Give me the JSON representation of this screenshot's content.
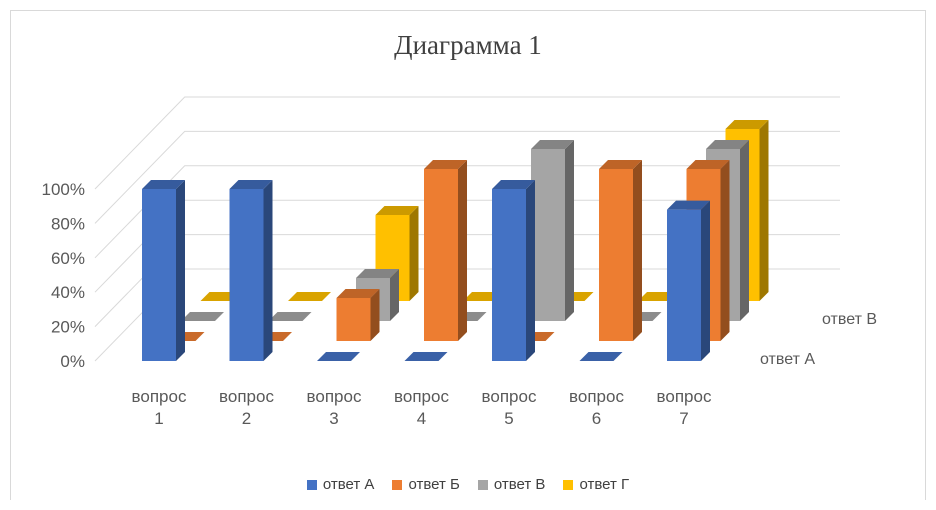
{
  "chart_data": {
    "type": "bar",
    "title": "Диаграмма 1",
    "categories": [
      "вопрос 1",
      "вопрос 2",
      "вопрос 3",
      "вопрос 4",
      "вопрос 5",
      "вопрос 6",
      "вопрос 7"
    ],
    "category_lines": [
      [
        "вопрос",
        "1"
      ],
      [
        "вопрос",
        "2"
      ],
      [
        "вопрос",
        "3"
      ],
      [
        "вопрос",
        "4"
      ],
      [
        "вопрос",
        "5"
      ],
      [
        "вопрос",
        "6"
      ],
      [
        "вопрос",
        "7"
      ]
    ],
    "series": [
      {
        "name": "ответ А",
        "color": "#4472c4",
        "values": [
          100,
          100,
          0,
          0,
          100,
          0,
          88
        ]
      },
      {
        "name": "ответ Б",
        "color": "#ed7d31",
        "values": [
          0,
          0,
          25,
          100,
          0,
          100,
          100
        ]
      },
      {
        "name": "ответ В",
        "color": "#a5a5a5",
        "values": [
          0,
          0,
          25,
          0,
          100,
          0,
          100
        ]
      },
      {
        "name": "ответ Г",
        "color": "#ffc000",
        "values": [
          0,
          0,
          50,
          0,
          0,
          0,
          100
        ]
      }
    ],
    "depth_labels": [
      "ответ А",
      "ответ В"
    ],
    "y_ticks": [
      "0%",
      "20%",
      "40%",
      "60%",
      "80%",
      "100%"
    ],
    "ylim": [
      0,
      100
    ],
    "grid": true,
    "legend_position": "bottom"
  }
}
